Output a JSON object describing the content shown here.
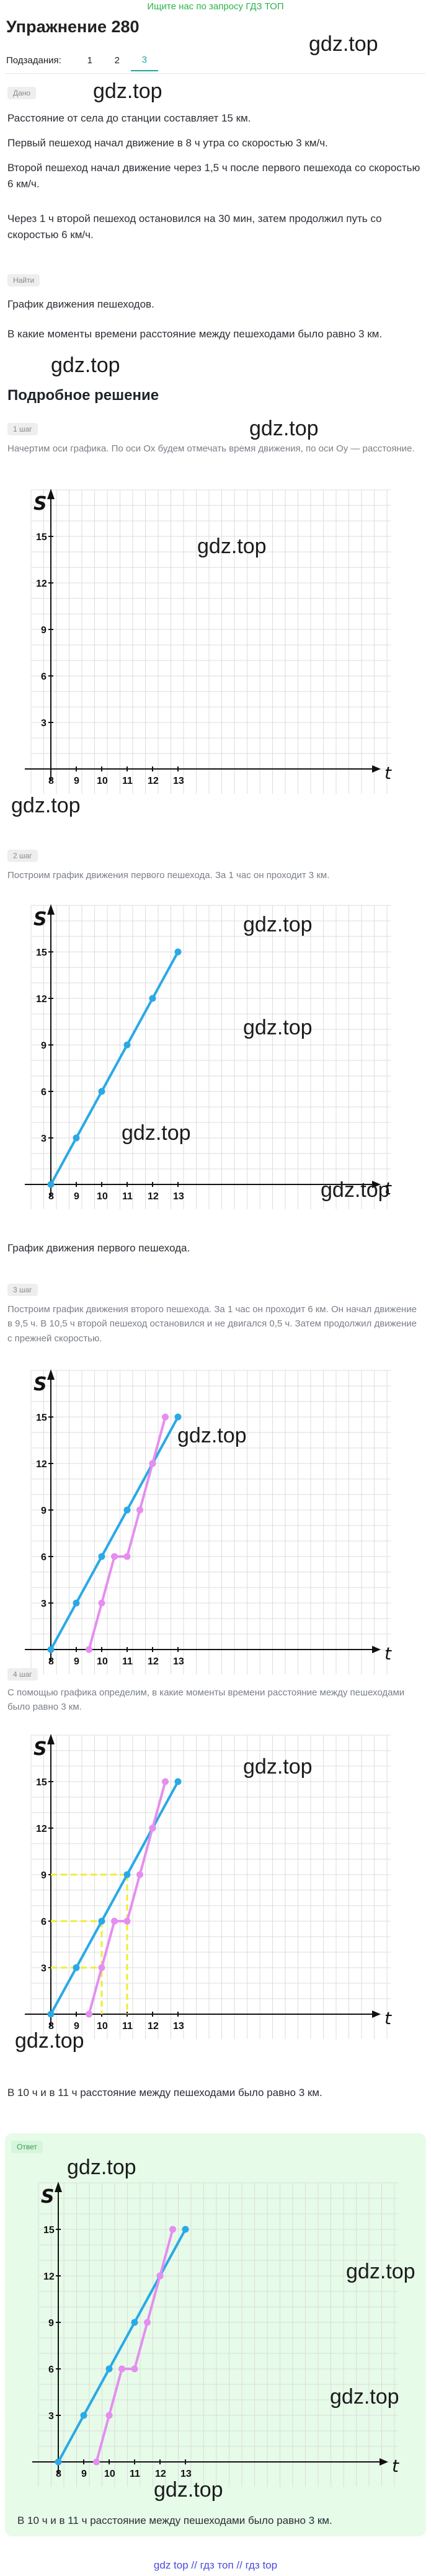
{
  "banner": "Ищите нас по запросу ГДЗ ТОП",
  "title": "Упражнение 280",
  "subtasks": {
    "label": "Подзадания:",
    "tabs": [
      "1",
      "2",
      "3"
    ],
    "active": "3"
  },
  "watermark": "gdz.top",
  "given": {
    "label": "Дано",
    "lines": [
      "Расстояние от села до станции составляет 15 км.",
      "Первый пешеход начал движение в 8 ч утра со скоростью 3 км/ч.",
      "Второй пешеход начал движение через 1,5 ч после первого пешехода со скоростью 6 км/ч.",
      "Через 1 ч второй пешеход остановился на 30 мин, затем продолжил путь со скоростью 6 км/ч."
    ]
  },
  "find": {
    "label": "Найти",
    "lines": [
      "График движения пешеходов.",
      "В какие моменты времени расстояние между пешеходами было равно 3 км."
    ]
  },
  "solution_title": "Подробное решение",
  "steps": [
    {
      "label": "1 шаг",
      "text": "Начертим оси графика. По оси Ox будем отмечать время движения, по оси Oy — расстояние."
    },
    {
      "label": "2 шаг",
      "text": "Построим график движения первого пешехода. За 1 час он проходит 3 км.",
      "after": "График движения первого пешехода."
    },
    {
      "label": "3 шаг",
      "text": "Построим график движения второго пешехода. За 1 час он проходит 6 км. Он начал движение в 9,5 ч. В 10,5 ч второй пешеход остановился и не двигался 0,5 ч. Затем продолжил движение с прежней скоростью."
    },
    {
      "label": "4 шаг",
      "text": "С помощью графика определим, в какие моменты времени расстояние между пешеходами было равно 3 км.",
      "after": "В 10 ч и в 11 ч расстояние между пешеходами было равно 3 км."
    }
  ],
  "answer": {
    "label": "Ответ",
    "text": "В 10 ч и в 11 ч расстояние между пешеходами было равно 3 км."
  },
  "graph_axes": {
    "x_label": "t",
    "y_label": "S",
    "x_ticks": [
      "8",
      "9",
      "10",
      "11",
      "12",
      "13"
    ],
    "y_ticks": [
      "3",
      "6",
      "9",
      "12",
      "15"
    ]
  },
  "chart_data": [
    {
      "type": "line",
      "series": [],
      "xlim": [
        8,
        13
      ],
      "ylim": [
        0,
        15
      ]
    },
    {
      "type": "line",
      "series": [
        {
          "values": [
            [
              8,
              0
            ],
            [
              9,
              3
            ],
            [
              10,
              6
            ],
            [
              11,
              9
            ],
            [
              12,
              12
            ],
            [
              13,
              15
            ]
          ]
        }
      ],
      "xlim": [
        8,
        13
      ],
      "ylim": [
        0,
        15
      ]
    },
    {
      "type": "line",
      "series": [
        {
          "values": [
            [
              8,
              0
            ],
            [
              9,
              3
            ],
            [
              10,
              6
            ],
            [
              11,
              9
            ],
            [
              12,
              12
            ],
            [
              13,
              15
            ]
          ]
        },
        {
          "values": [
            [
              9.5,
              0
            ],
            [
              10,
              3
            ],
            [
              10.5,
              6
            ],
            [
              11,
              6
            ],
            [
              11.5,
              9
            ],
            [
              12,
              12
            ],
            [
              12.5,
              15
            ]
          ]
        }
      ],
      "xlim": [
        8,
        13
      ],
      "ylim": [
        0,
        15
      ]
    },
    {
      "type": "line",
      "series": [
        {
          "values": [
            [
              8,
              0
            ],
            [
              9,
              3
            ],
            [
              10,
              6
            ],
            [
              11,
              9
            ],
            [
              12,
              12
            ],
            [
              13,
              15
            ]
          ]
        },
        {
          "values": [
            [
              9.5,
              0
            ],
            [
              10,
              3
            ],
            [
              10.5,
              6
            ],
            [
              11,
              6
            ],
            [
              11.5,
              9
            ],
            [
              12,
              12
            ],
            [
              12.5,
              15
            ]
          ]
        }
      ],
      "xlim": [
        8,
        13
      ],
      "ylim": [
        0,
        15
      ],
      "highlight": [
        10,
        11
      ]
    },
    {
      "type": "line",
      "series": [
        {
          "values": [
            [
              8,
              0
            ],
            [
              9,
              3
            ],
            [
              10,
              6
            ],
            [
              11,
              9
            ],
            [
              12,
              12
            ],
            [
              13,
              15
            ]
          ]
        },
        {
          "values": [
            [
              9.5,
              0
            ],
            [
              10,
              3
            ],
            [
              10.5,
              6
            ],
            [
              11,
              6
            ],
            [
              11.5,
              9
            ],
            [
              12,
              12
            ],
            [
              12.5,
              15
            ]
          ]
        }
      ],
      "xlim": [
        8,
        13
      ],
      "ylim": [
        0,
        15
      ]
    }
  ],
  "footer": "gdz top  //  гдз топ  //  гдз top",
  "colors": {
    "accent": "#1aa9a0",
    "banner": "#2bb34a",
    "series1": "#2aa9e6",
    "series2": "#e58ef0",
    "highlight": "#eeee33",
    "grid": "#dcdcdc"
  }
}
